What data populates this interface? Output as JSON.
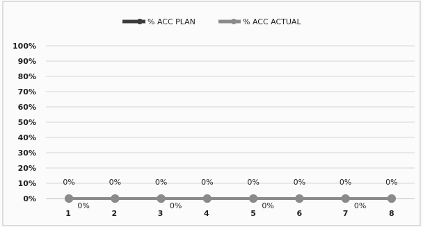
{
  "chart_data": {
    "type": "line",
    "title": "",
    "xlabel": "",
    "ylabel": "",
    "x": [
      "1",
      "2",
      "3",
      "4",
      "5",
      "6",
      "7",
      "8"
    ],
    "ylim": [
      0,
      100
    ],
    "yticks": [
      "100%",
      "90%",
      "80%",
      "70%",
      "60%",
      "50%",
      "40%",
      "30%",
      "20%",
      "10%",
      "0%"
    ],
    "grid": true,
    "legend_position": "top",
    "series": [
      {
        "name": "% ACC PLAN",
        "values": [
          0,
          0,
          0,
          0,
          0,
          0,
          0,
          0
        ],
        "data_labels": [
          "0%",
          "0%",
          "0%",
          "0%",
          "0%",
          "0%",
          "0%",
          "0%"
        ],
        "color": "#3a3a3a"
      },
      {
        "name": "% ACC ACTUAL",
        "values": [
          0,
          0,
          0,
          0,
          0,
          0,
          0,
          0
        ],
        "data_labels": [
          "0%",
          "0%",
          "0%",
          "0%"
        ],
        "color": "#8a8a8a"
      }
    ]
  }
}
